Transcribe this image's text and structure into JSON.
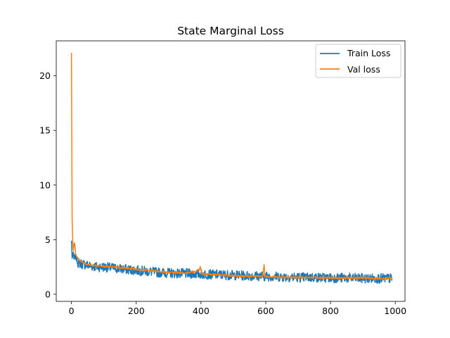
{
  "chart_data": {
    "type": "line",
    "title": "State Marginal Loss",
    "xlabel": "",
    "ylabel": "",
    "xlim": [
      -47,
      1030
    ],
    "ylim": [
      -0.65,
      23.2
    ],
    "xticks": [
      0,
      200,
      400,
      600,
      800,
      1000
    ],
    "yticks": [
      0,
      5,
      10,
      15,
      20
    ],
    "grid": false,
    "legend_position": "top-right",
    "series": [
      {
        "name": "Train Loss",
        "color": "#1f77b4",
        "x": [
          0,
          2,
          5,
          8,
          12,
          20,
          30,
          45,
          60,
          80,
          100,
          130,
          160,
          200,
          250,
          300,
          350,
          400,
          450,
          500,
          550,
          600,
          650,
          700,
          750,
          800,
          850,
          900,
          950,
          990
        ],
        "y": [
          4.9,
          3.3,
          3.8,
          3.2,
          3.5,
          2.9,
          2.8,
          2.7,
          2.6,
          2.5,
          2.5,
          2.4,
          2.3,
          2.2,
          2.05,
          1.95,
          1.9,
          1.85,
          1.8,
          1.75,
          1.7,
          1.65,
          1.6,
          1.55,
          1.55,
          1.5,
          1.5,
          1.45,
          1.45,
          1.45
        ],
        "noise": 0.45
      },
      {
        "name": "Val loss",
        "color": "#ff7f0e",
        "x": [
          0,
          2,
          4,
          6,
          8,
          10,
          13,
          16,
          20,
          25,
          30,
          40,
          50,
          70,
          100,
          150,
          200,
          250,
          300,
          350,
          380,
          395,
          398,
          402,
          410,
          450,
          500,
          550,
          590,
          595,
          597,
          600,
          610,
          650,
          700,
          750,
          800,
          850,
          900,
          950,
          990
        ],
        "y": [
          22.1,
          7.0,
          4.7,
          4.0,
          4.6,
          4.7,
          3.6,
          3.5,
          3.3,
          3.1,
          3.0,
          2.8,
          2.7,
          2.65,
          2.55,
          2.45,
          2.3,
          2.15,
          2.0,
          1.95,
          2.05,
          2.2,
          2.6,
          1.9,
          1.85,
          1.8,
          1.7,
          1.65,
          1.65,
          2.7,
          1.75,
          1.65,
          1.6,
          1.55,
          1.55,
          1.55,
          1.5,
          1.5,
          1.5,
          1.45,
          1.45
        ],
        "noise": 0.08
      }
    ]
  }
}
